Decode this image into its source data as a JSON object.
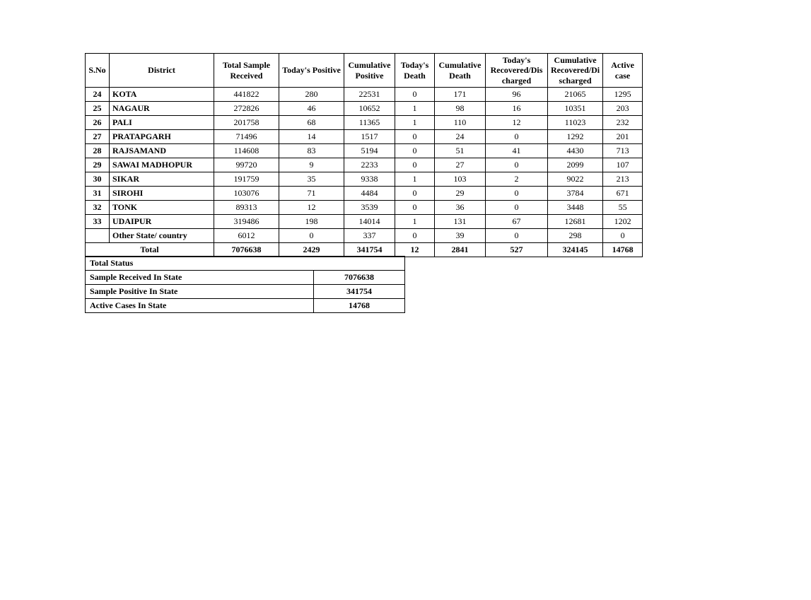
{
  "mainTable": {
    "headers": {
      "sno": "S.No",
      "district": "District",
      "totalSample": "Total Sample Received",
      "todaysPositive": "Today's Positive",
      "cumulativePositive": "Cumulative Positive",
      "todaysDeath": "Today's Death",
      "cumulativeDeath": "Cumulative Death",
      "todaysRecovered": "Today's Recovered/Dis charged",
      "cumulativeRecovered": "Cumulative Recovered/Di scharged",
      "activeCase": "Active case"
    },
    "rows": [
      {
        "sno": "24",
        "district": "KOTA",
        "totalSample": "441822",
        "todaysPositive": "280",
        "cumulativePositive": "22531",
        "todaysDeath": "0",
        "cumulativeDeath": "171",
        "todaysRecovered": "96",
        "cumulativeRecovered": "21065",
        "activeCase": "1295"
      },
      {
        "sno": "25",
        "district": "NAGAUR",
        "totalSample": "272826",
        "todaysPositive": "46",
        "cumulativePositive": "10652",
        "todaysDeath": "1",
        "cumulativeDeath": "98",
        "todaysRecovered": "16",
        "cumulativeRecovered": "10351",
        "activeCase": "203"
      },
      {
        "sno": "26",
        "district": "PALI",
        "totalSample": "201758",
        "todaysPositive": "68",
        "cumulativePositive": "11365",
        "todaysDeath": "1",
        "cumulativeDeath": "110",
        "todaysRecovered": "12",
        "cumulativeRecovered": "11023",
        "activeCase": "232"
      },
      {
        "sno": "27",
        "district": "PRATAPGARH",
        "totalSample": "71496",
        "todaysPositive": "14",
        "cumulativePositive": "1517",
        "todaysDeath": "0",
        "cumulativeDeath": "24",
        "todaysRecovered": "0",
        "cumulativeRecovered": "1292",
        "activeCase": "201"
      },
      {
        "sno": "28",
        "district": "RAJSAMAND",
        "totalSample": "114608",
        "todaysPositive": "83",
        "cumulativePositive": "5194",
        "todaysDeath": "0",
        "cumulativeDeath": "51",
        "todaysRecovered": "41",
        "cumulativeRecovered": "4430",
        "activeCase": "713"
      },
      {
        "sno": "29",
        "district": "SAWAI MADHOPUR",
        "totalSample": "99720",
        "todaysPositive": "9",
        "cumulativePositive": "2233",
        "todaysDeath": "0",
        "cumulativeDeath": "27",
        "todaysRecovered": "0",
        "cumulativeRecovered": "2099",
        "activeCase": "107"
      },
      {
        "sno": "30",
        "district": "SIKAR",
        "totalSample": "191759",
        "todaysPositive": "35",
        "cumulativePositive": "9338",
        "todaysDeath": "1",
        "cumulativeDeath": "103",
        "todaysRecovered": "2",
        "cumulativeRecovered": "9022",
        "activeCase": "213"
      },
      {
        "sno": "31",
        "district": "SIROHI",
        "totalSample": "103076",
        "todaysPositive": "71",
        "cumulativePositive": "4484",
        "todaysDeath": "0",
        "cumulativeDeath": "29",
        "todaysRecovered": "0",
        "cumulativeRecovered": "3784",
        "activeCase": "671"
      },
      {
        "sno": "32",
        "district": "TONK",
        "totalSample": "89313",
        "todaysPositive": "12",
        "cumulativePositive": "3539",
        "todaysDeath": "0",
        "cumulativeDeath": "36",
        "todaysRecovered": "0",
        "cumulativeRecovered": "3448",
        "activeCase": "55"
      },
      {
        "sno": "33",
        "district": "UDAIPUR",
        "totalSample": "319486",
        "todaysPositive": "198",
        "cumulativePositive": "14014",
        "todaysDeath": "1",
        "cumulativeDeath": "131",
        "todaysRecovered": "67",
        "cumulativeRecovered": "12681",
        "activeCase": "1202"
      },
      {
        "sno": "",
        "district": "Other State/ country",
        "totalSample": "6012",
        "todaysPositive": "0",
        "cumulativePositive": "337",
        "todaysDeath": "0",
        "cumulativeDeath": "39",
        "todaysRecovered": "0",
        "cumulativeRecovered": "298",
        "activeCase": "0"
      }
    ],
    "total": {
      "label": "Total",
      "totalSample": "7076638",
      "todaysPositive": "2429",
      "cumulativePositive": "341754",
      "todaysDeath": "12",
      "cumulativeDeath": "2841",
      "todaysRecovered": "527",
      "cumulativeRecovered": "324145",
      "activeCase": "14768"
    }
  },
  "statusTable": {
    "title": "Total Status",
    "rows": [
      {
        "label": "Sample Received In State",
        "value": "7076638"
      },
      {
        "label": "Sample Positive In State",
        "value": "341754"
      },
      {
        "label": "Active Cases In State",
        "value": "14768"
      }
    ]
  }
}
